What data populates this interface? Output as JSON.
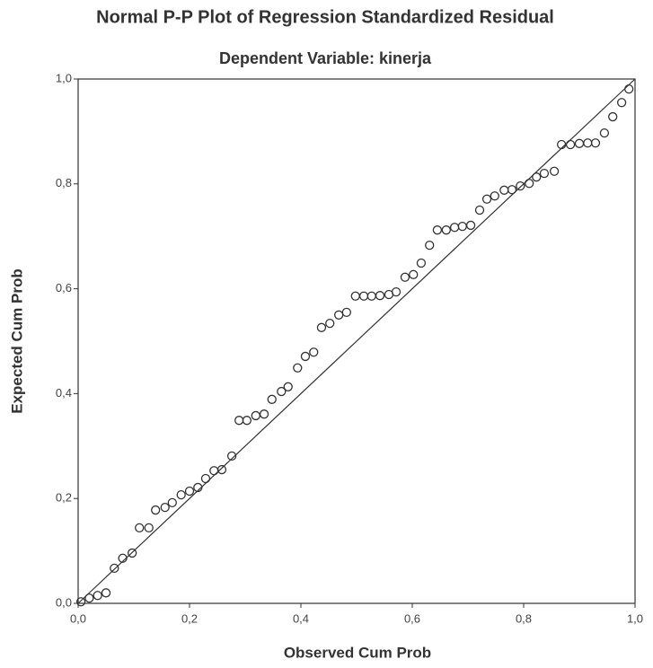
{
  "chart_data": {
    "type": "scatter",
    "title": "Normal P-P Plot of Regression Standardized Residual",
    "subtitle": "Dependent Variable: kinerja",
    "x_label": "Observed Cum Prob",
    "y_label": "Expected Cum Prob",
    "xlim": [
      0,
      1
    ],
    "ylim": [
      0,
      1
    ],
    "xticks": [
      {
        "value": 0,
        "label": "0,0"
      },
      {
        "value": 0.2,
        "label": "0,2"
      },
      {
        "value": 0.4,
        "label": "0,4"
      },
      {
        "value": 0.6,
        "label": "0,6"
      },
      {
        "value": 0.8,
        "label": "0,8"
      },
      {
        "value": 1,
        "label": "1,0"
      }
    ],
    "yticks": [
      {
        "value": 0,
        "label": "0,0"
      },
      {
        "value": 0.2,
        "label": "0,2"
      },
      {
        "value": 0.4,
        "label": "0,4"
      },
      {
        "value": 0.6,
        "label": "0,6"
      },
      {
        "value": 0.8,
        "label": "0,8"
      },
      {
        "value": 1,
        "label": "1,0"
      }
    ],
    "color": "#333333",
    "x": [
      0.005,
      0.02,
      0.035,
      0.05,
      0.065,
      0.08,
      0.097,
      0.11,
      0.127,
      0.139,
      0.156,
      0.169,
      0.185,
      0.2,
      0.215,
      0.229,
      0.244,
      0.258,
      0.276,
      0.289,
      0.303,
      0.319,
      0.334,
      0.348,
      0.365,
      0.377,
      0.394,
      0.408,
      0.423,
      0.437,
      0.452,
      0.468,
      0.482,
      0.498,
      0.513,
      0.527,
      0.542,
      0.558,
      0.571,
      0.587,
      0.602,
      0.616,
      0.631,
      0.645,
      0.661,
      0.676,
      0.69,
      0.705,
      0.721,
      0.734,
      0.748,
      0.765,
      0.779,
      0.794,
      0.81,
      0.823,
      0.837,
      0.855,
      0.868,
      0.884,
      0.9,
      0.915,
      0.929,
      0.945,
      0.96,
      0.976,
      0.989
    ],
    "values": [
      0.003,
      0.01,
      0.015,
      0.02,
      0.067,
      0.086,
      0.096,
      0.144,
      0.144,
      0.178,
      0.183,
      0.192,
      0.207,
      0.214,
      0.221,
      0.238,
      0.253,
      0.255,
      0.281,
      0.349,
      0.349,
      0.358,
      0.361,
      0.389,
      0.404,
      0.413,
      0.449,
      0.471,
      0.479,
      0.526,
      0.534,
      0.55,
      0.555,
      0.586,
      0.586,
      0.586,
      0.587,
      0.589,
      0.594,
      0.622,
      0.627,
      0.649,
      0.683,
      0.712,
      0.712,
      0.717,
      0.719,
      0.721,
      0.75,
      0.771,
      0.777,
      0.788,
      0.789,
      0.796,
      0.801,
      0.813,
      0.82,
      0.824,
      0.875,
      0.875,
      0.877,
      0.878,
      0.878,
      0.897,
      0.928,
      0.955,
      0.981
    ]
  }
}
